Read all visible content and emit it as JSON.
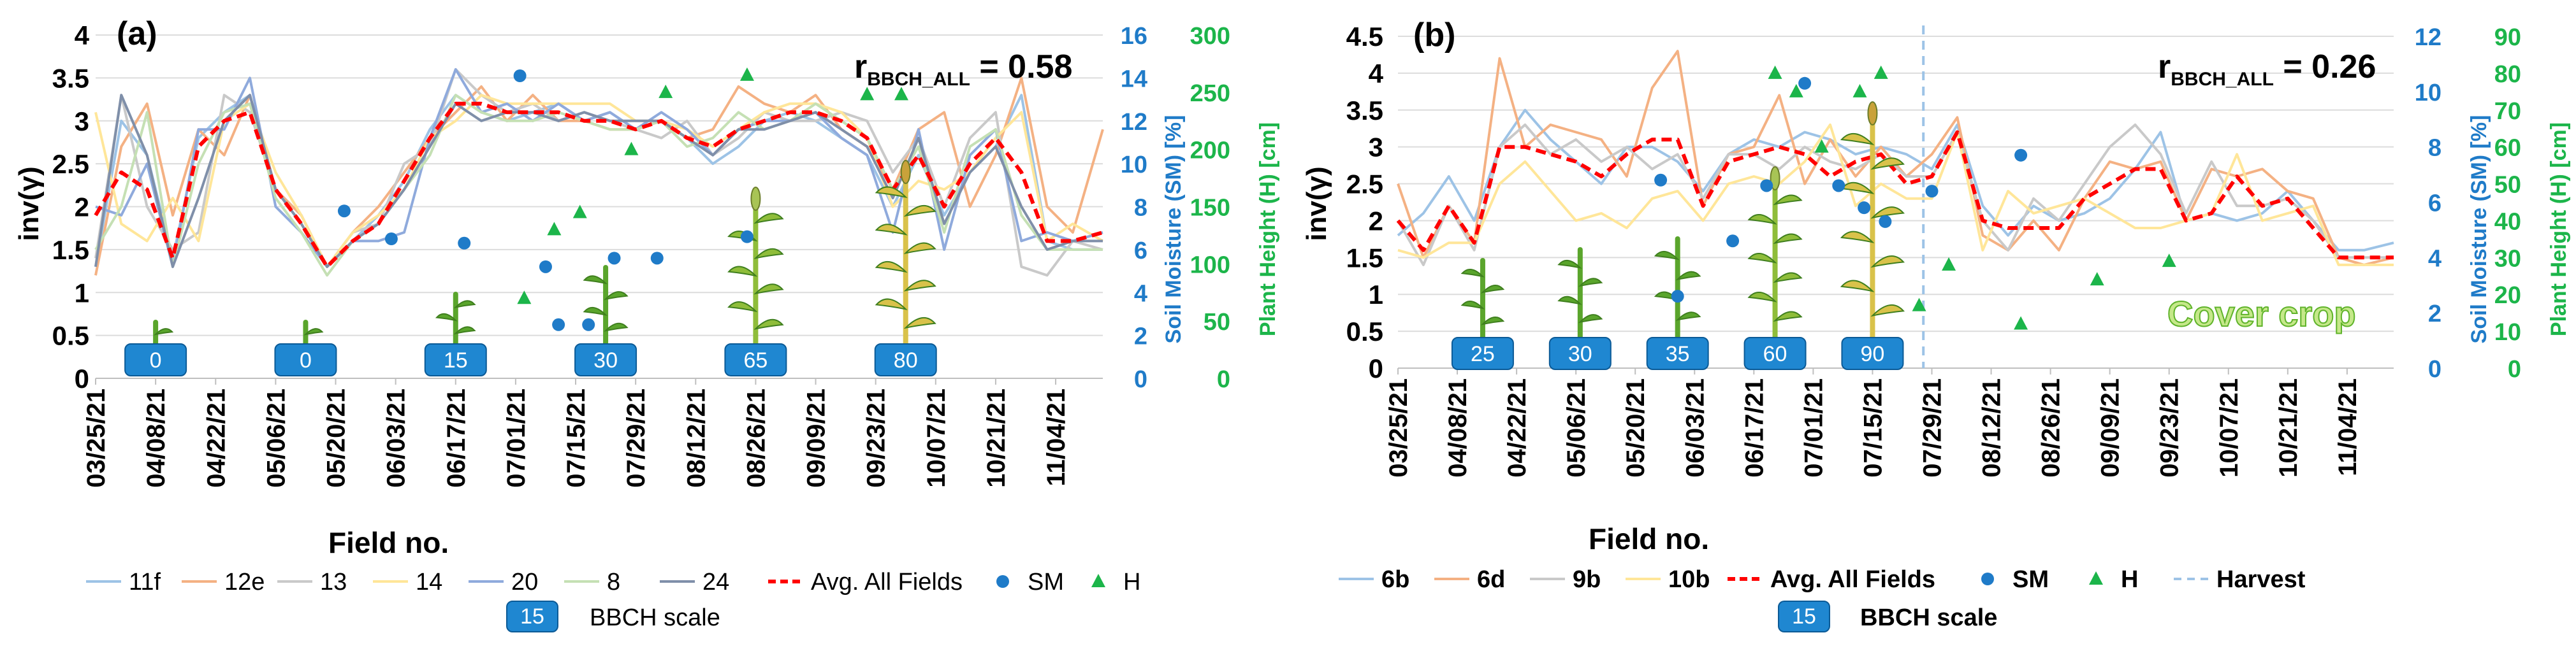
{
  "figure": {
    "legend_title_bbch": "BBCH scale",
    "legend_bbch_example": "15"
  },
  "chart_data": [
    {
      "type": "line",
      "panel_label": "(a)",
      "title": "",
      "annotation_r": "r",
      "annotation_r_sub": "BBCH_ALL",
      "annotation_r_value": " = 0.58",
      "xlabel": "Field no.",
      "ylabel": "inv(γ)",
      "y2label": "Soil Moisture (SM) [%]",
      "y3label": "Plant Height (H) [cm]",
      "ylim": [
        0,
        4
      ],
      "yticks": [
        "0",
        "0.5",
        "1",
        "1.5",
        "2",
        "2.5",
        "3",
        "3.5",
        "4"
      ],
      "y2lim": [
        0,
        16
      ],
      "y2ticks": [
        "0",
        "2",
        "4",
        "6",
        "8",
        "10",
        "12",
        "14",
        "16"
      ],
      "y3lim": [
        0,
        300
      ],
      "y3ticks": [
        "0",
        "50",
        "100",
        "150",
        "200",
        "250",
        "300"
      ],
      "x_range": [
        0,
        235
      ],
      "x_ticks": [
        {
          "x": 0,
          "label": "03/25/21"
        },
        {
          "x": 14,
          "label": "04/08/21"
        },
        {
          "x": 28,
          "label": "04/22/21"
        },
        {
          "x": 42,
          "label": "05/06/21"
        },
        {
          "x": 56,
          "label": "05/20/21"
        },
        {
          "x": 70,
          "label": "06/03/21"
        },
        {
          "x": 84,
          "label": "06/17/21"
        },
        {
          "x": 98,
          "label": "07/01/21"
        },
        {
          "x": 112,
          "label": "07/15/21"
        },
        {
          "x": 126,
          "label": "07/29/21"
        },
        {
          "x": 140,
          "label": "08/12/21"
        },
        {
          "x": 154,
          "label": "08/26/21"
        },
        {
          "x": 168,
          "label": "09/09/21"
        },
        {
          "x": 182,
          "label": "09/23/21"
        },
        {
          "x": 196,
          "label": "10/07/21"
        },
        {
          "x": 210,
          "label": "10/21/21"
        },
        {
          "x": 224,
          "label": "11/04/21"
        }
      ],
      "x": [
        0,
        6,
        12,
        18,
        24,
        30,
        36,
        42,
        48,
        54,
        60,
        66,
        72,
        78,
        84,
        90,
        96,
        102,
        108,
        114,
        120,
        126,
        132,
        138,
        144,
        150,
        156,
        162,
        168,
        174,
        180,
        186,
        192,
        198,
        204,
        210,
        216,
        222,
        228,
        235
      ],
      "series": [
        {
          "name": "11f",
          "color": "#9dc3e6",
          "values": [
            1.3,
            3.0,
            2.6,
            1.4,
            2.8,
            3.1,
            3.3,
            2.2,
            1.9,
            1.3,
            1.6,
            1.9,
            2.3,
            2.9,
            3.3,
            3.1,
            3.0,
            3.1,
            3.2,
            3.0,
            3.1,
            2.9,
            3.0,
            2.8,
            2.5,
            2.7,
            3.0,
            3.1,
            3.0,
            2.8,
            2.6,
            2.0,
            2.6,
            1.9,
            2.4,
            2.7,
            3.3,
            1.6,
            1.5,
            1.5
          ]
        },
        {
          "name": "12e",
          "color": "#f4b183",
          "values": [
            1.2,
            2.7,
            3.2,
            1.9,
            2.9,
            2.6,
            3.3,
            2.2,
            1.9,
            1.3,
            1.7,
            2.0,
            2.4,
            2.8,
            3.1,
            3.4,
            3.0,
            3.3,
            3.0,
            3.0,
            2.9,
            2.9,
            3.0,
            2.8,
            2.9,
            3.4,
            3.2,
            3.1,
            3.3,
            2.9,
            2.7,
            2.2,
            2.9,
            3.1,
            2.0,
            2.6,
            3.5,
            2.0,
            1.7,
            2.9
          ]
        },
        {
          "name": "13",
          "color": "#c9c9c9",
          "values": [
            1.4,
            3.3,
            2.0,
            1.5,
            1.7,
            3.3,
            3.1,
            2.2,
            1.8,
            1.3,
            1.7,
            1.8,
            2.5,
            2.7,
            3.6,
            3.3,
            3.1,
            3.2,
            3.0,
            3.1,
            3.0,
            2.9,
            2.8,
            3.0,
            2.6,
            2.8,
            3.1,
            3.0,
            3.0,
            3.1,
            3.0,
            2.4,
            2.8,
            2.0,
            2.8,
            3.1,
            1.3,
            1.2,
            1.6,
            1.5
          ]
        },
        {
          "name": "14",
          "color": "#ffe699",
          "values": [
            3.1,
            1.8,
            1.6,
            2.1,
            1.6,
            3.0,
            3.2,
            2.4,
            1.9,
            1.3,
            1.7,
            1.9,
            2.2,
            2.8,
            3.0,
            3.3,
            3.2,
            3.2,
            3.2,
            3.2,
            3.2,
            3.0,
            3.0,
            2.9,
            2.7,
            2.9,
            3.1,
            3.2,
            3.2,
            3.1,
            2.8,
            2.0,
            2.3,
            2.2,
            2.4,
            2.8,
            3.1,
            1.6,
            1.8,
            1.6
          ]
        },
        {
          "name": "20",
          "color": "#8faadc",
          "values": [
            2.0,
            1.9,
            2.5,
            1.3,
            2.9,
            2.9,
            3.5,
            2.0,
            1.7,
            1.3,
            1.6,
            1.6,
            1.7,
            2.8,
            3.6,
            3.1,
            3.2,
            3.0,
            3.2,
            3.0,
            3.1,
            2.9,
            3.1,
            2.9,
            2.6,
            2.9,
            3.0,
            3.0,
            3.1,
            2.8,
            2.6,
            1.7,
            2.9,
            1.5,
            2.6,
            2.9,
            1.6,
            1.7,
            1.6,
            1.7
          ]
        },
        {
          "name": "8",
          "color": "#c5e0b4",
          "values": [
            1.5,
            2.0,
            3.1,
            1.3,
            2.5,
            3.1,
            3.2,
            2.1,
            1.7,
            1.2,
            1.6,
            1.8,
            2.2,
            2.6,
            3.3,
            3.1,
            3.0,
            3.0,
            3.1,
            3.0,
            2.9,
            2.9,
            3.0,
            2.7,
            2.8,
            3.1,
            2.9,
            3.0,
            3.2,
            3.0,
            2.8,
            2.2,
            2.7,
            1.7,
            2.7,
            2.9,
            1.9,
            1.5,
            1.5,
            1.5
          ]
        },
        {
          "name": "24",
          "color": "#7f8fa9",
          "values": [
            1.3,
            3.3,
            2.6,
            1.3,
            2.1,
            3.0,
            3.3,
            2.2,
            1.8,
            1.3,
            1.6,
            1.8,
            2.2,
            2.7,
            3.2,
            3.0,
            3.1,
            3.1,
            3.0,
            3.1,
            3.0,
            3.0,
            3.0,
            2.8,
            2.6,
            2.9,
            2.9,
            3.0,
            3.1,
            2.9,
            2.7,
            2.1,
            2.8,
            1.8,
            2.4,
            2.7,
            2.0,
            1.5,
            1.6,
            1.6
          ]
        },
        {
          "name": "Avg. All Fields",
          "color": "#ff0000",
          "dash": true,
          "values": [
            1.9,
            2.4,
            2.2,
            1.4,
            2.7,
            3.0,
            3.1,
            2.2,
            1.8,
            1.3,
            1.6,
            1.8,
            2.3,
            2.8,
            3.2,
            3.2,
            3.1,
            3.1,
            3.1,
            3.0,
            3.0,
            2.9,
            3.0,
            2.8,
            2.7,
            2.9,
            3.0,
            3.1,
            3.1,
            3.0,
            2.8,
            2.2,
            2.6,
            2.0,
            2.5,
            2.8,
            2.4,
            1.6,
            1.6,
            1.7
          ]
        }
      ],
      "sm_points": {
        "name": "SM",
        "color": "#1f7bc8",
        "x": [
          58,
          69,
          86,
          99,
          105,
          108,
          115,
          121,
          131,
          152
        ],
        "values": [
          7.8,
          6.5,
          6.3,
          14.1,
          5.2,
          2.5,
          2.5,
          5.6,
          5.6,
          6.6
        ]
      },
      "h_points": {
        "name": "H",
        "color": "#1cb54a",
        "x": [
          100,
          107,
          113,
          125,
          133,
          152,
          180,
          188
        ],
        "values": [
          70,
          130,
          145,
          200,
          250,
          265,
          248,
          248
        ]
      },
      "bbch_badges": [
        {
          "x": 14,
          "label": "0"
        },
        {
          "x": 49,
          "label": "0"
        },
        {
          "x": 84,
          "label": "15"
        },
        {
          "x": 119,
          "label": "30"
        },
        {
          "x": 154,
          "label": "65"
        },
        {
          "x": 189,
          "label": "80"
        }
      ]
    },
    {
      "type": "line",
      "panel_label": "(b)",
      "title": "",
      "annotation_r": "r",
      "annotation_r_sub": "BBCH_ALL",
      "annotation_r_value": " = 0.26",
      "annotation_cover": "Cover crop",
      "xlabel": "Field no.",
      "ylabel": "inv(γ)",
      "y2label": "Soil Moisture (SM) [%]",
      "y3label": "Plant Height (H) [cm]",
      "ylim": [
        0,
        4.5
      ],
      "yticks": [
        "0",
        "0.5",
        "1",
        "1.5",
        "2",
        "2.5",
        "3",
        "3.5",
        "4",
        "4.5"
      ],
      "y2lim": [
        0,
        12
      ],
      "y2ticks": [
        "0",
        "2",
        "4",
        "6",
        "8",
        "10",
        "12"
      ],
      "y3lim": [
        0,
        90
      ],
      "y3ticks": [
        "0",
        "10",
        "20",
        "30",
        "40",
        "50",
        "60",
        "70",
        "80",
        "90"
      ],
      "x_range": [
        0,
        235
      ],
      "harvest_x": 124,
      "x_ticks": [
        {
          "x": 0,
          "label": "03/25/21"
        },
        {
          "x": 14,
          "label": "04/08/21"
        },
        {
          "x": 28,
          "label": "04/22/21"
        },
        {
          "x": 42,
          "label": "05/06/21"
        },
        {
          "x": 56,
          "label": "05/20/21"
        },
        {
          "x": 70,
          "label": "06/03/21"
        },
        {
          "x": 84,
          "label": "06/17/21"
        },
        {
          "x": 98,
          "label": "07/01/21"
        },
        {
          "x": 112,
          "label": "07/15/21"
        },
        {
          "x": 126,
          "label": "07/29/21"
        },
        {
          "x": 140,
          "label": "08/12/21"
        },
        {
          "x": 154,
          "label": "08/26/21"
        },
        {
          "x": 168,
          "label": "09/09/21"
        },
        {
          "x": 182,
          "label": "09/23/21"
        },
        {
          "x": 196,
          "label": "10/07/21"
        },
        {
          "x": 210,
          "label": "10/21/21"
        },
        {
          "x": 224,
          "label": "11/04/21"
        }
      ],
      "x": [
        0,
        6,
        12,
        18,
        24,
        30,
        36,
        42,
        48,
        54,
        60,
        66,
        72,
        78,
        84,
        90,
        96,
        102,
        108,
        114,
        120,
        126,
        132,
        138,
        144,
        150,
        156,
        162,
        168,
        174,
        180,
        186,
        192,
        198,
        204,
        210,
        216,
        222,
        228,
        235
      ],
      "series": [
        {
          "name": "6b",
          "color": "#9dc3e6",
          "values": [
            1.8,
            2.1,
            2.6,
            2.0,
            3.0,
            3.5,
            3.1,
            2.8,
            2.5,
            3.0,
            3.0,
            2.8,
            2.4,
            2.9,
            3.1,
            3.0,
            3.2,
            3.1,
            2.9,
            3.0,
            2.9,
            2.7,
            3.3,
            2.2,
            1.8,
            2.2,
            2.0,
            2.1,
            2.3,
            2.7,
            3.2,
            2.0,
            2.1,
            2.0,
            2.1,
            2.4,
            2.0,
            1.6,
            1.6,
            1.7
          ]
        },
        {
          "name": "6d",
          "color": "#f4b183",
          "values": [
            2.5,
            1.5,
            2.2,
            1.7,
            4.2,
            3.0,
            3.3,
            3.2,
            3.1,
            2.6,
            3.8,
            4.3,
            2.2,
            2.9,
            3.0,
            3.7,
            2.5,
            3.1,
            2.6,
            3.0,
            2.6,
            2.9,
            3.4,
            1.8,
            1.6,
            2.0,
            1.6,
            2.3,
            2.8,
            2.7,
            2.8,
            2.0,
            2.7,
            2.6,
            2.7,
            2.4,
            2.3,
            1.5,
            1.4,
            1.5
          ]
        },
        {
          "name": "9b",
          "color": "#c9c9c9",
          "values": [
            2.0,
            1.4,
            2.2,
            1.6,
            3.0,
            3.3,
            2.9,
            3.1,
            2.8,
            3.0,
            2.7,
            2.9,
            2.3,
            2.9,
            2.9,
            2.7,
            3.0,
            2.8,
            2.7,
            2.9,
            2.6,
            2.6,
            3.2,
            2.0,
            1.6,
            2.3,
            2.0,
            2.5,
            3.0,
            3.3,
            2.9,
            2.1,
            2.8,
            2.2,
            2.2,
            2.3,
            2.0,
            1.5,
            1.5,
            1.5
          ]
        },
        {
          "name": "10b",
          "color": "#ffe699",
          "values": [
            1.6,
            1.5,
            1.7,
            1.7,
            2.5,
            2.8,
            2.4,
            2.0,
            2.1,
            1.9,
            2.3,
            2.4,
            2.0,
            2.5,
            2.6,
            2.5,
            2.8,
            3.3,
            2.2,
            2.5,
            2.3,
            2.3,
            3.2,
            1.6,
            2.4,
            2.1,
            2.2,
            2.3,
            2.1,
            1.9,
            1.9,
            2.0,
            2.1,
            2.9,
            2.0,
            2.1,
            2.2,
            1.4,
            1.4,
            1.4
          ]
        },
        {
          "name": "Avg. All Fields",
          "color": "#ff0000",
          "dash": true,
          "values": [
            2.0,
            1.6,
            2.2,
            1.7,
            3.0,
            3.0,
            2.9,
            2.8,
            2.6,
            2.9,
            3.1,
            3.1,
            2.2,
            2.8,
            2.9,
            3.0,
            2.9,
            2.6,
            2.8,
            2.9,
            2.5,
            2.6,
            3.2,
            2.0,
            1.9,
            1.9,
            1.9,
            2.3,
            2.5,
            2.7,
            2.7,
            2.0,
            2.1,
            2.6,
            2.2,
            2.3,
            1.9,
            1.5,
            1.5,
            1.5
          ]
        }
      ],
      "sm_points": {
        "name": "SM",
        "color": "#1f7bc8",
        "x": [
          62,
          66,
          79,
          87,
          96,
          104,
          110,
          115,
          126,
          147
        ],
        "values": [
          6.8,
          2.6,
          4.6,
          6.6,
          10.3,
          6.6,
          5.8,
          5.3,
          6.4,
          7.7
        ]
      },
      "h_points": {
        "name": "H",
        "color": "#1cb54a",
        "x": [
          89,
          94,
          100,
          109,
          114,
          123,
          130,
          147,
          165,
          182
        ],
        "values": [
          80,
          75,
          60,
          75,
          80,
          17,
          28,
          12,
          24,
          29
        ]
      },
      "bbch_badges": [
        {
          "x": 20,
          "label": "25"
        },
        {
          "x": 43,
          "label": "30"
        },
        {
          "x": 66,
          "label": "35"
        },
        {
          "x": 89,
          "label": "60"
        },
        {
          "x": 112,
          "label": "90"
        }
      ]
    }
  ]
}
